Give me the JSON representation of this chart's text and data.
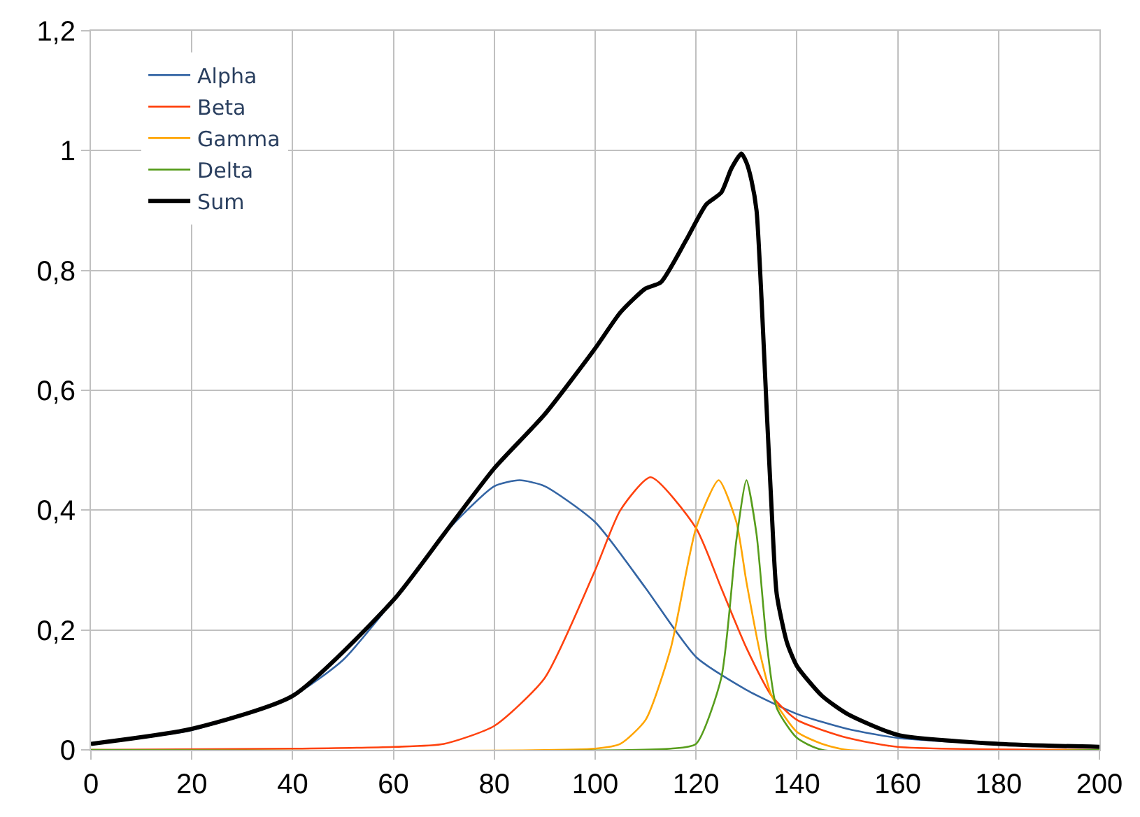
{
  "chart_data": {
    "type": "line",
    "xlim": [
      0,
      200
    ],
    "ylim": [
      0,
      1.2
    ],
    "xticks": [
      0,
      20,
      40,
      60,
      80,
      100,
      120,
      140,
      160,
      180,
      200
    ],
    "yticks": [
      0,
      {
        "value": 0.2,
        "label": "0,2"
      },
      {
        "value": 0.4,
        "label": "0,4"
      },
      {
        "value": 0.6,
        "label": "0,6"
      },
      {
        "value": 0.8,
        "label": "0,8"
      },
      1,
      {
        "value": 1.2,
        "label": "1,2"
      }
    ],
    "grid": true,
    "legend": "top left",
    "line_style": "solid",
    "marker": "none",
    "series": [
      {
        "name": "Alpha",
        "color": "#3465a4",
        "x": [
          0,
          20,
          40,
          50,
          60,
          70,
          80,
          85,
          90,
          100,
          110,
          120,
          130,
          140,
          150,
          160,
          180,
          200
        ],
        "values": [
          0.01,
          0.033,
          0.09,
          0.15,
          0.25,
          0.36,
          0.44,
          0.45,
          0.44,
          0.38,
          0.27,
          0.155,
          0.1,
          0.06,
          0.035,
          0.02,
          0.01,
          0.005
        ]
      },
      {
        "name": "Beta",
        "color": "#ff420e",
        "x": [
          0,
          40,
          60,
          70,
          80,
          90,
          100,
          105,
          111,
          120,
          125,
          130,
          135,
          140,
          150,
          160,
          200
        ],
        "values": [
          0,
          0.002,
          0.005,
          0.01,
          0.04,
          0.12,
          0.3,
          0.4,
          0.455,
          0.37,
          0.27,
          0.17,
          0.09,
          0.05,
          0.02,
          0.005,
          0
        ]
      },
      {
        "name": "Gamma",
        "color": "#ffa500",
        "x": [
          0,
          100,
          105,
          110,
          115,
          120,
          124.5,
          128,
          130,
          133,
          135,
          140,
          145,
          150,
          200
        ],
        "values": [
          0,
          0.002,
          0.01,
          0.05,
          0.17,
          0.37,
          0.45,
          0.38,
          0.28,
          0.15,
          0.09,
          0.03,
          0.01,
          0,
          0
        ]
      },
      {
        "name": "Delta",
        "color": "#579d1c",
        "x": [
          0,
          115,
          120,
          125,
          128,
          130,
          132,
          134,
          136,
          140,
          145,
          200
        ],
        "values": [
          0,
          0.002,
          0.01,
          0.12,
          0.35,
          0.45,
          0.36,
          0.18,
          0.07,
          0.02,
          0,
          0
        ]
      },
      {
        "name": "Sum",
        "color": "#000000",
        "x": [
          0,
          20,
          40,
          60,
          70,
          80,
          90,
          100,
          105,
          110,
          113,
          118,
          122,
          125,
          127,
          129,
          130,
          131,
          132,
          133,
          134,
          135,
          136,
          138,
          140,
          145,
          150,
          160,
          180,
          200
        ],
        "values": [
          0.01,
          0.035,
          0.09,
          0.25,
          0.36,
          0.47,
          0.56,
          0.67,
          0.73,
          0.77,
          0.78,
          0.85,
          0.91,
          0.93,
          0.97,
          0.995,
          0.98,
          0.95,
          0.9,
          0.75,
          0.57,
          0.4,
          0.26,
          0.18,
          0.14,
          0.09,
          0.06,
          0.025,
          0.01,
          0.005
        ]
      }
    ]
  }
}
